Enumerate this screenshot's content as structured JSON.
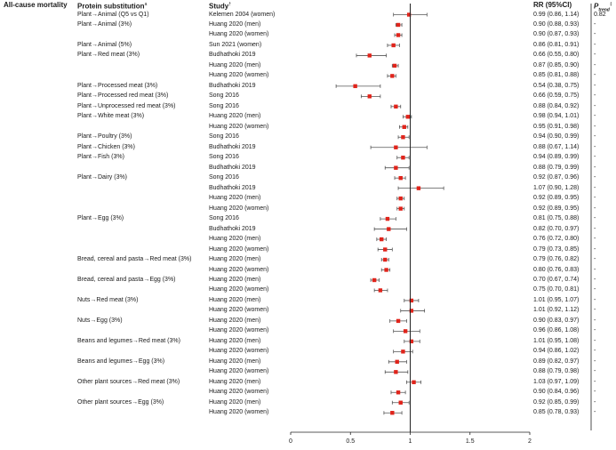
{
  "headers": {
    "outcome": "All-cause mortality",
    "substitution": "Protein substitution",
    "substitution_mark": "a",
    "study": "Study",
    "study_mark": "†",
    "rr": "RR (95%CI)",
    "p_trend_p": "P",
    "p_trend_sub": "trend",
    "p_trend_mark": "‡"
  },
  "colors": {
    "point": "#e0241b",
    "ci_line": "#555555",
    "ref_line": "#222222",
    "axis": "#222222"
  },
  "chart_data": {
    "type": "forest",
    "title": "",
    "xlabel": "",
    "xlim": [
      0,
      2
    ],
    "xticks": [
      0,
      0.5,
      1,
      1.5,
      2
    ],
    "xtick_labels": [
      "0",
      "0.5",
      "1",
      "1.5",
      "2"
    ],
    "reference_value": 1,
    "rows": [
      {
        "substitution": "Plant→Animal (Q5 vs Q1)",
        "study": "Kelemen 2004 (women)",
        "rr": 0.99,
        "lo": 0.86,
        "hi": 1.14,
        "rr_text": "0.99 (0.86, 1.14)",
        "p_trend": "0.82"
      },
      {
        "substitution": "Plant→Animal (3%)",
        "study": "Huang 2020 (men)",
        "rr": 0.9,
        "lo": 0.88,
        "hi": 0.93,
        "rr_text": "0.90 (0.88, 0.93)",
        "p_trend": "-"
      },
      {
        "substitution": "",
        "study": "Huang 2020 (women)",
        "rr": 0.9,
        "lo": 0.87,
        "hi": 0.93,
        "rr_text": "0.90 (0.87, 0.93)",
        "p_trend": "-"
      },
      {
        "substitution": "Plant→Animal (5%)",
        "study": "Sun 2021 (women)",
        "rr": 0.86,
        "lo": 0.81,
        "hi": 0.91,
        "rr_text": "0.86 (0.81, 0.91)",
        "p_trend": "-"
      },
      {
        "substitution": "Plant→Red meat (3%)",
        "study": "Budhathoki 2019",
        "rr": 0.66,
        "lo": 0.55,
        "hi": 0.8,
        "rr_text": "0.66 (0.55, 0.80)",
        "p_trend": "-"
      },
      {
        "substitution": "",
        "study": "Huang 2020 (men)",
        "rr": 0.87,
        "lo": 0.85,
        "hi": 0.9,
        "rr_text": "0.87 (0.85, 0.90)",
        "p_trend": "-"
      },
      {
        "substitution": "",
        "study": "Huang 2020 (women)",
        "rr": 0.85,
        "lo": 0.81,
        "hi": 0.88,
        "rr_text": "0.85 (0.81, 0.88)",
        "p_trend": "-"
      },
      {
        "substitution": "Plant→Processed meat (3%)",
        "study": "Budhathoki 2019",
        "rr": 0.54,
        "lo": 0.38,
        "hi": 0.75,
        "rr_text": "0.54 (0.38, 0.75)",
        "p_trend": "-"
      },
      {
        "substitution": "Plant→Processed red meat (3%)",
        "study": "Song 2016",
        "rr": 0.66,
        "lo": 0.59,
        "hi": 0.75,
        "rr_text": "0.66 (0.59, 0.75)",
        "p_trend": "-"
      },
      {
        "substitution": "Plant→Unprocessed red meat (3%)",
        "study": "Song 2016",
        "rr": 0.88,
        "lo": 0.84,
        "hi": 0.92,
        "rr_text": "0.88 (0.84, 0.92)",
        "p_trend": "-"
      },
      {
        "substitution": "Plant→White meat (3%)",
        "study": "Huang 2020 (men)",
        "rr": 0.98,
        "lo": 0.94,
        "hi": 1.01,
        "rr_text": "0.98 (0.94, 1.01)",
        "p_trend": "-"
      },
      {
        "substitution": "",
        "study": "Huang 2020 (women)",
        "rr": 0.95,
        "lo": 0.91,
        "hi": 0.98,
        "rr_text": "0.95 (0.91, 0.98)",
        "p_trend": "-"
      },
      {
        "substitution": "Plant→Poultry (3%)",
        "study": "Song 2016",
        "rr": 0.94,
        "lo": 0.9,
        "hi": 0.99,
        "rr_text": "0.94 (0.90, 0.99)",
        "p_trend": "-"
      },
      {
        "substitution": "Plant→Chicken (3%)",
        "study": "Budhathoki 2019",
        "rr": 0.88,
        "lo": 0.67,
        "hi": 1.14,
        "rr_text": "0.88 (0.67, 1.14)",
        "p_trend": "-"
      },
      {
        "substitution": "Plant→Fish (3%)",
        "study": "Song 2016",
        "rr": 0.94,
        "lo": 0.89,
        "hi": 0.99,
        "rr_text": "0.94 (0.89, 0.99)",
        "p_trend": "-"
      },
      {
        "substitution": "",
        "study": "Budhathoki 2019",
        "rr": 0.88,
        "lo": 0.79,
        "hi": 0.99,
        "rr_text": "0.88 (0.79, 0.99)",
        "p_trend": "-"
      },
      {
        "substitution": "Plant→Dairy (3%)",
        "study": "Song 2016",
        "rr": 0.92,
        "lo": 0.87,
        "hi": 0.96,
        "rr_text": "0.92 (0.87, 0.96)",
        "p_trend": "-"
      },
      {
        "substitution": "",
        "study": "Budhathoki 2019",
        "rr": 1.07,
        "lo": 0.9,
        "hi": 1.28,
        "rr_text": "1.07 (0.90, 1.28)",
        "p_trend": "-"
      },
      {
        "substitution": "",
        "study": "Huang 2020 (men)",
        "rr": 0.92,
        "lo": 0.89,
        "hi": 0.95,
        "rr_text": "0.92 (0.89, 0.95)",
        "p_trend": "-"
      },
      {
        "substitution": "",
        "study": "Huang 2020 (women)",
        "rr": 0.92,
        "lo": 0.89,
        "hi": 0.95,
        "rr_text": "0.92 (0.89, 0.95)",
        "p_trend": "-"
      },
      {
        "substitution": "Plant→Egg (3%)",
        "study": "Song 2016",
        "rr": 0.81,
        "lo": 0.75,
        "hi": 0.88,
        "rr_text": "0.81 (0.75, 0.88)",
        "p_trend": "-"
      },
      {
        "substitution": "",
        "study": "Budhathoki 2019",
        "rr": 0.82,
        "lo": 0.7,
        "hi": 0.97,
        "rr_text": "0.82 (0.70, 0.97)",
        "p_trend": "-"
      },
      {
        "substitution": "",
        "study": "Huang 2020 (men)",
        "rr": 0.76,
        "lo": 0.72,
        "hi": 0.8,
        "rr_text": "0.76 (0.72, 0.80)",
        "p_trend": "-"
      },
      {
        "substitution": "",
        "study": "Huang 2020 (women)",
        "rr": 0.79,
        "lo": 0.73,
        "hi": 0.85,
        "rr_text": "0.79 (0.73, 0.85)",
        "p_trend": "-"
      },
      {
        "substitution": "Bread, cereal and pasta→Red meat (3%)",
        "study": "Huang 2020 (men)",
        "rr": 0.79,
        "lo": 0.76,
        "hi": 0.82,
        "rr_text": "0.79 (0.76, 0.82)",
        "p_trend": "-"
      },
      {
        "substitution": "",
        "study": "Huang 2020 (women)",
        "rr": 0.8,
        "lo": 0.76,
        "hi": 0.83,
        "rr_text": "0.80 (0.76, 0.83)",
        "p_trend": "-"
      },
      {
        "substitution": "Bread, cereal and pasta→Egg (3%)",
        "study": "Huang 2020 (men)",
        "rr": 0.7,
        "lo": 0.67,
        "hi": 0.74,
        "rr_text": "0.70 (0.67, 0.74)",
        "p_trend": "-"
      },
      {
        "substitution": "",
        "study": "Huang 2020 (women)",
        "rr": 0.75,
        "lo": 0.7,
        "hi": 0.81,
        "rr_text": "0.75 (0.70, 0.81)",
        "p_trend": "-"
      },
      {
        "substitution": "Nuts→Red meat (3%)",
        "study": "Huang 2020 (men)",
        "rr": 1.01,
        "lo": 0.95,
        "hi": 1.07,
        "rr_text": "1.01 (0.95, 1.07)",
        "p_trend": "-"
      },
      {
        "substitution": "",
        "study": "Huang 2020 (women)",
        "rr": 1.01,
        "lo": 0.92,
        "hi": 1.12,
        "rr_text": "1.01 (0.92, 1.12)",
        "p_trend": "-"
      },
      {
        "substitution": "Nuts→Egg (3%)",
        "study": "Huang 2020 (men)",
        "rr": 0.9,
        "lo": 0.83,
        "hi": 0.97,
        "rr_text": "0.90 (0.83, 0.97)",
        "p_trend": "-"
      },
      {
        "substitution": "",
        "study": "Huang 2020 (women)",
        "rr": 0.96,
        "lo": 0.86,
        "hi": 1.08,
        "rr_text": "0.96 (0.86, 1.08)",
        "p_trend": "-"
      },
      {
        "substitution": "Beans and legumes→Red meat (3%)",
        "study": "Huang 2020 (men)",
        "rr": 1.01,
        "lo": 0.95,
        "hi": 1.08,
        "rr_text": "1.01 (0.95, 1.08)",
        "p_trend": "-"
      },
      {
        "substitution": "",
        "study": "Huang 2020 (women)",
        "rr": 0.94,
        "lo": 0.86,
        "hi": 1.02,
        "rr_text": "0.94 (0.86, 1.02)",
        "p_trend": "-"
      },
      {
        "substitution": "Beans and legumes→Egg (3%)",
        "study": "Huang 2020 (men)",
        "rr": 0.89,
        "lo": 0.82,
        "hi": 0.97,
        "rr_text": "0.89 (0.82, 0.97)",
        "p_trend": "-"
      },
      {
        "substitution": "",
        "study": "Huang 2020 (women)",
        "rr": 0.88,
        "lo": 0.79,
        "hi": 0.98,
        "rr_text": "0.88 (0.79, 0.98)",
        "p_trend": "-"
      },
      {
        "substitution": "Other plant sources→Red meat (3%)",
        "study": "Huang 2020 (men)",
        "rr": 1.03,
        "lo": 0.97,
        "hi": 1.09,
        "rr_text": "1.03 (0.97, 1.09)",
        "p_trend": "-"
      },
      {
        "substitution": "",
        "study": "Huang 2020 (women)",
        "rr": 0.9,
        "lo": 0.84,
        "hi": 0.96,
        "rr_text": "0.90 (0.84, 0.96)",
        "p_trend": "-"
      },
      {
        "substitution": "Other plant sources→Egg (3%)",
        "study": "Huang 2020 (men)",
        "rr": 0.92,
        "lo": 0.85,
        "hi": 0.99,
        "rr_text": "0.92 (0.85, 0.99)",
        "p_trend": "-"
      },
      {
        "substitution": "",
        "study": "Huang 2020 (women)",
        "rr": 0.85,
        "lo": 0.78,
        "hi": 0.93,
        "rr_text": "0.85 (0.78, 0.93)",
        "p_trend": "-"
      }
    ]
  }
}
